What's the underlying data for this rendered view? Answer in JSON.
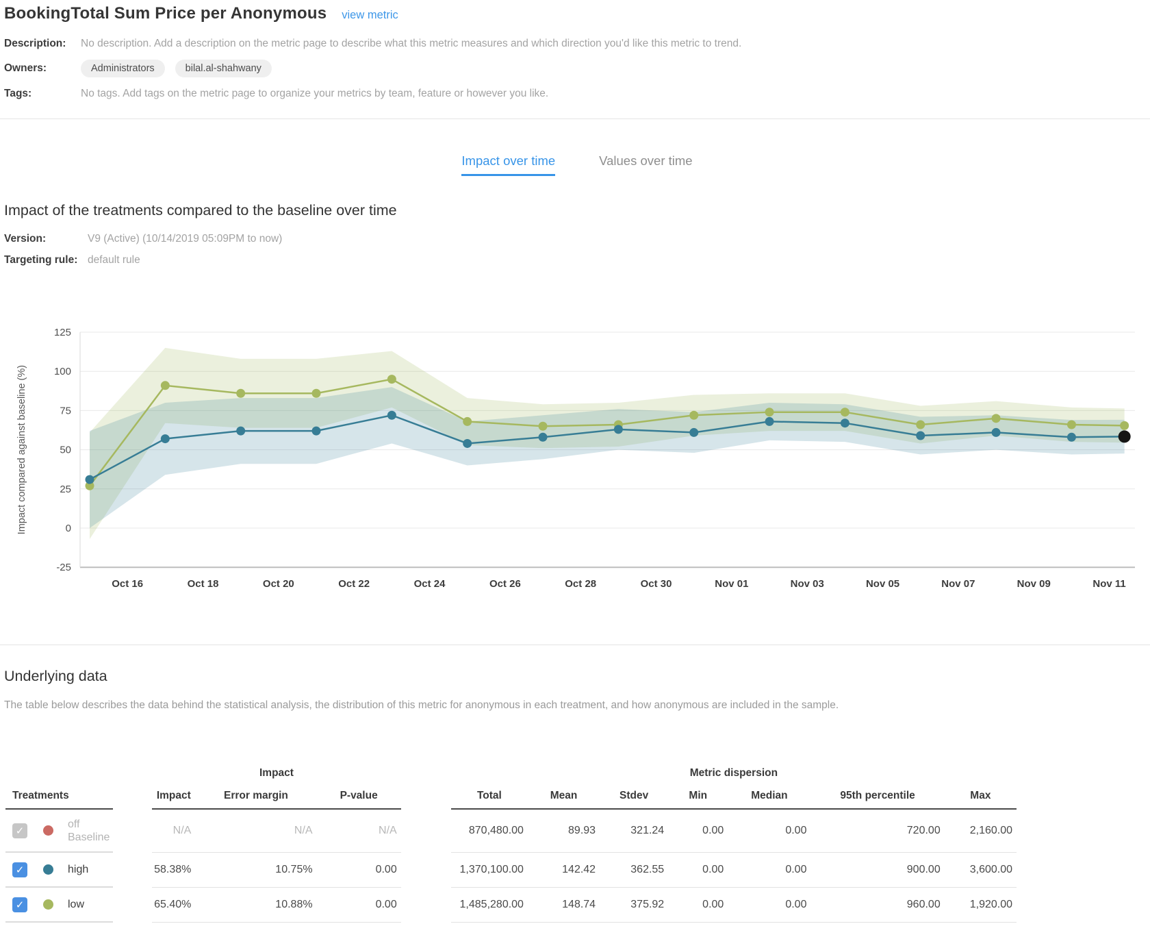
{
  "page": {
    "title": "BookingTotal Sum Price per Anonymous",
    "view_metric_link": "view metric"
  },
  "meta": {
    "description_label": "Description:",
    "description_value": "No description. Add a description on the metric page to describe what this metric measures and which direction you'd like this metric to trend.",
    "owners_label": "Owners:",
    "owners": [
      "Administrators",
      "bilal.al-shahwany"
    ],
    "tags_label": "Tags:",
    "tags_value": "No tags. Add tags on the metric page to organize your metrics by team, feature or however you like."
  },
  "tabs": [
    {
      "label": "Impact over time",
      "active": true
    },
    {
      "label": "Values over time",
      "active": false
    }
  ],
  "section": {
    "heading": "Impact of the treatments compared to the baseline over time",
    "version_label": "Version:",
    "version_value": "V9 (Active) (10/14/2019 05:09PM to now)",
    "targeting_label": "Targeting rule:",
    "targeting_value": "default rule"
  },
  "chart_data": {
    "type": "line",
    "title": "",
    "xlabel": "",
    "ylabel": "Impact compared against baseline (%)",
    "ylim": [
      -25,
      125
    ],
    "yticks": [
      -25,
      0,
      25,
      50,
      75,
      100,
      125
    ],
    "grid": true,
    "legend_position": "none (series identified by colored dots in table below)",
    "x_days": [
      0,
      2,
      4,
      6,
      8,
      10,
      12,
      14,
      16,
      18,
      20,
      22,
      24,
      26,
      27.4
    ],
    "xtick_days": [
      1,
      3,
      5,
      7,
      9,
      11,
      13,
      15,
      17,
      19,
      21,
      23,
      25,
      27
    ],
    "xtick_labels": [
      "Oct 16",
      "Oct 18",
      "Oct 20",
      "Oct 22",
      "Oct 24",
      "Oct 26",
      "Oct 28",
      "Oct 30",
      "Nov 01",
      "Nov 03",
      "Nov 05",
      "Nov 07",
      "Nov 09",
      "Nov 11"
    ],
    "series": [
      {
        "name": "low",
        "color": "#a6b85f",
        "band_color": "rgba(166,185,100,0.22)",
        "values": [
          27,
          91,
          86,
          86,
          95,
          68,
          65,
          66,
          72,
          74,
          74,
          66,
          70,
          66,
          65.4
        ],
        "band_upper": [
          61,
          115,
          108,
          108,
          113,
          83,
          79,
          80,
          85,
          86,
          86,
          78,
          81,
          77,
          76.3
        ],
        "band_lower": [
          -7,
          67,
          64,
          64,
          77,
          53,
          51,
          52,
          59,
          62,
          62,
          54,
          59,
          55,
          54.5
        ]
      },
      {
        "name": "high",
        "color": "#377d95",
        "band_color": "rgba(52,125,150,0.20)",
        "values": [
          31,
          57,
          62,
          62,
          72,
          54,
          58,
          63,
          61,
          68,
          67,
          59,
          61,
          58,
          58.4
        ],
        "band_upper": [
          62,
          80,
          83,
          83,
          90,
          68,
          72,
          76,
          74,
          80,
          79,
          71,
          72,
          69,
          69.1
        ],
        "band_lower": [
          0,
          34,
          41,
          41,
          54,
          40,
          44,
          50,
          48,
          56,
          55,
          47,
          50,
          47,
          47.6
        ]
      }
    ],
    "highlight_last_point": {
      "series": "high",
      "color": "#151515"
    }
  },
  "underlying": {
    "heading": "Underlying data",
    "description": "The table below describes the data behind the statistical analysis, the distribution of this metric for anonymous in each treatment, and how anonymous are included in the sample."
  },
  "table": {
    "treatments_header": "Treatments",
    "column_groups": [
      {
        "label": "Impact",
        "columns": [
          "Impact",
          "Error margin",
          "P-value"
        ]
      },
      {
        "label": "Metric dispersion",
        "columns": [
          "Total",
          "Mean",
          "Stdev",
          "Min",
          "Median",
          "95th percentile",
          "Max"
        ]
      }
    ],
    "rows": [
      {
        "treatment": "off",
        "sublabel": "Baseline",
        "dot_color": "#cb6a63",
        "checkbox": "checked-disabled",
        "muted": true,
        "values": [
          "N/A",
          "N/A",
          "N/A",
          "870,480.00",
          "89.93",
          "321.24",
          "0.00",
          "0.00",
          "720.00",
          "2,160.00"
        ]
      },
      {
        "treatment": "high",
        "sublabel": "",
        "dot_color": "#377d95",
        "checkbox": "checked",
        "muted": false,
        "values": [
          "58.38%",
          "10.75%",
          "0.00",
          "1,370,100.00",
          "142.42",
          "362.55",
          "0.00",
          "0.00",
          "900.00",
          "3,600.00"
        ]
      },
      {
        "treatment": "low",
        "sublabel": "",
        "dot_color": "#a6b85f",
        "checkbox": "checked",
        "muted": false,
        "values": [
          "65.40%",
          "10.88%",
          "0.00",
          "1,485,280.00",
          "148.74",
          "375.92",
          "0.00",
          "0.00",
          "960.00",
          "1,920.00"
        ]
      }
    ]
  },
  "icons": {
    "checkbox_check": "✓"
  }
}
